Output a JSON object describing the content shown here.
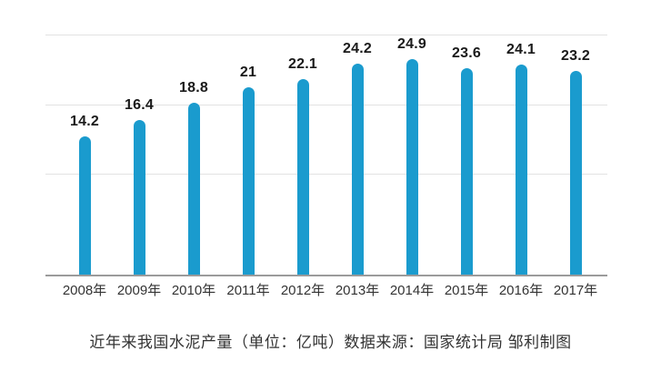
{
  "chart_data": {
    "type": "bar",
    "title": "近年来我国水泥产量（单位：亿吨）数据来源：国家统计局 邹利制图",
    "categories": [
      "2008年",
      "2009年",
      "2010年",
      "2011年",
      "2012年",
      "2013年",
      "2014年",
      "2015年",
      "2016年",
      "2017年"
    ],
    "values": [
      14.2,
      16.4,
      18.8,
      21,
      22.1,
      24.2,
      24.9,
      23.6,
      24.1,
      23.2
    ],
    "value_labels": [
      "14.2",
      "16.4",
      "18.8",
      "21",
      "22.1",
      "24.2",
      "24.9",
      "23.6",
      "24.1",
      "23.2"
    ],
    "unit": "亿吨",
    "xlabel": "",
    "ylabel": "",
    "legend": null,
    "grid": true,
    "colors": {
      "bar": "#1a9bce",
      "gridline": "#e2e2e2",
      "axis_line": "#9b9b9b",
      "value_label": "#1a1a1a",
      "tick_label": "#333333",
      "caption": "#333333",
      "background": "#ffffff"
    }
  }
}
